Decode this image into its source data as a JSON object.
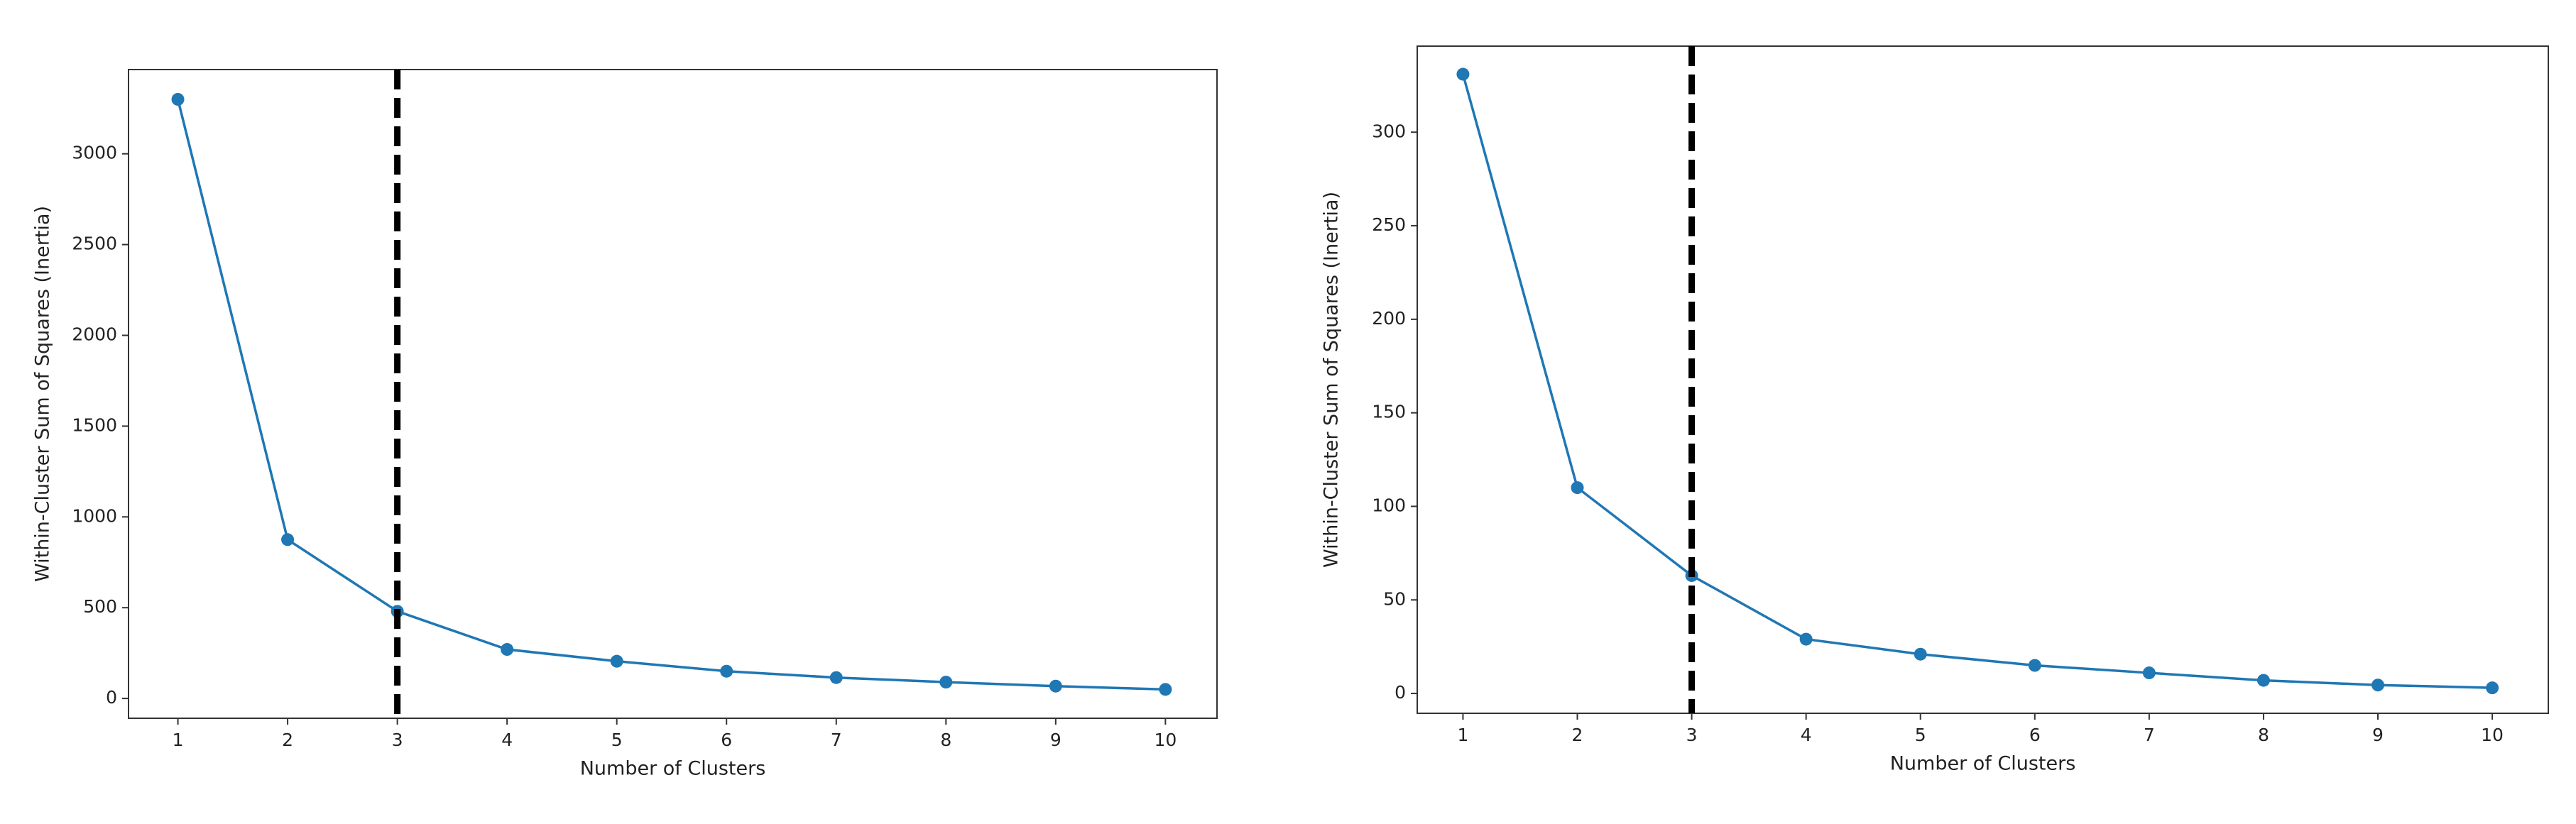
{
  "chart_data": [
    {
      "type": "line",
      "xlabel": "Number of Clusters",
      "ylabel": "Within-Cluster Sum of Squares (Inertia)",
      "x": [
        1,
        2,
        3,
        4,
        5,
        6,
        7,
        8,
        9,
        10
      ],
      "values": [
        3300,
        875,
        480,
        270,
        205,
        150,
        115,
        90,
        68,
        50
      ],
      "color": "#1f77b4",
      "marker": true,
      "xlim": [
        0.55,
        10.47
      ],
      "ylim": [
        -109,
        3464
      ],
      "xticks": [
        1,
        2,
        3,
        4,
        5,
        6,
        7,
        8,
        9,
        10
      ],
      "yticks": [
        0,
        500,
        1000,
        1500,
        2000,
        2500,
        3000
      ],
      "vline": 3,
      "vline_color": "#000000",
      "grid": false
    },
    {
      "type": "line",
      "xlabel": "Number of Clusters",
      "ylabel": "Within-Cluster Sum of Squares (Inertia)",
      "x": [
        1,
        2,
        3,
        4,
        5,
        6,
        7,
        8,
        9,
        10
      ],
      "values": [
        331,
        110,
        63,
        29,
        21,
        15,
        11,
        7,
        4.5,
        3
      ],
      "color": "#1f77b4",
      "marker": true,
      "xlim": [
        0.6,
        10.49
      ],
      "ylim": [
        -10.6,
        346
      ],
      "xticks": [
        1,
        2,
        3,
        4,
        5,
        6,
        7,
        8,
        9,
        10
      ],
      "yticks": [
        0,
        50,
        100,
        150,
        200,
        250,
        300
      ],
      "vline": 3,
      "vline_color": "#000000",
      "grid": false
    }
  ]
}
